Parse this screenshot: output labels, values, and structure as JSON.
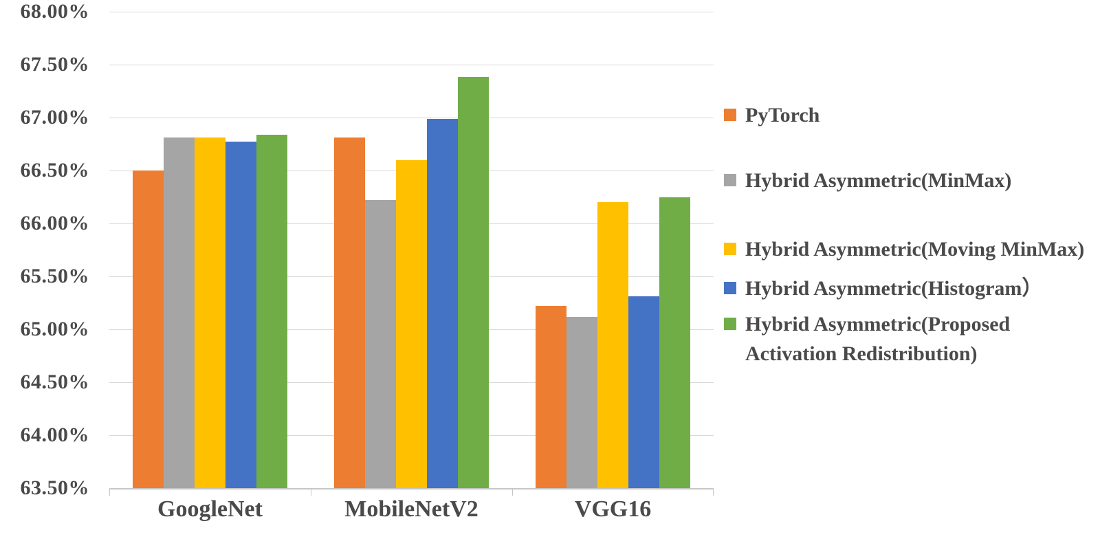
{
  "chart_data": {
    "type": "bar",
    "title": "",
    "xlabel": "",
    "ylabel": "",
    "categories": [
      "GoogleNet",
      "MobileNetV2",
      "VGG16"
    ],
    "series": [
      {
        "name": "PyTorch",
        "color": "#ED7D31",
        "values": [
          66.5,
          66.81,
          65.22
        ]
      },
      {
        "name": "Hybrid Asymmetric(MinMax)",
        "color": "#A5A5A5",
        "values": [
          66.81,
          66.22,
          65.12
        ]
      },
      {
        "name": "Hybrid Asymmetric(Moving MinMax)",
        "color": "#FFC000",
        "values": [
          66.81,
          66.6,
          66.2
        ]
      },
      {
        "name": "Hybrid Asymmetric(Histogram）",
        "color": "#4472C4",
        "values": [
          66.77,
          66.99,
          65.31
        ]
      },
      {
        "name": "Hybrid Asymmetric(Proposed Activation Redistribution)",
        "color": "#70AD47",
        "values": [
          66.84,
          67.38,
          66.25
        ]
      }
    ],
    "ylim": [
      63.5,
      68.0
    ],
    "ytick_step": 0.5,
    "yticks": [
      "68.00%",
      "67.50%",
      "67.00%",
      "66.50%",
      "66.00%",
      "65.50%",
      "65.00%",
      "64.50%",
      "64.00%",
      "63.50%"
    ],
    "grid": true,
    "legend_position": "right",
    "axis_text_color": "#4a4a4a",
    "gridline_color": "#d9d9d9",
    "axis_line_color": "#c6c6c6",
    "background_color": "#ffffff"
  }
}
